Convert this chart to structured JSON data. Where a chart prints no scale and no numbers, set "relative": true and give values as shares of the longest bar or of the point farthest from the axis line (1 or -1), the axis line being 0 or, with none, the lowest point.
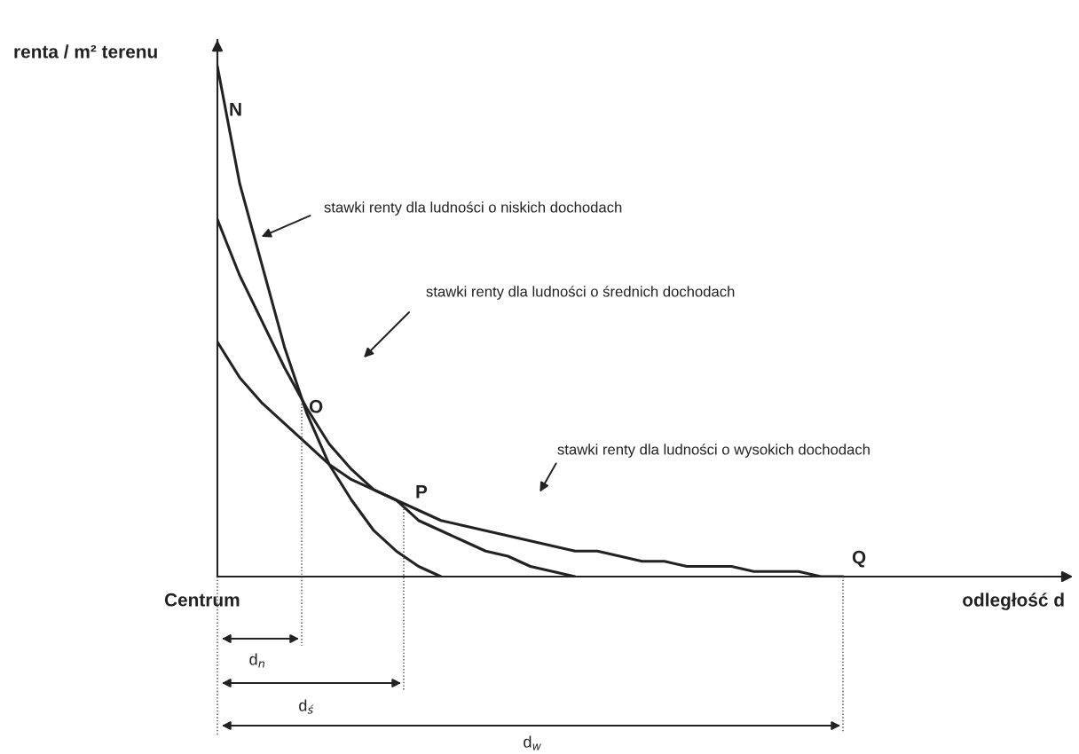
{
  "chart_data": {
    "type": "line",
    "relative": true,
    "ylabel": "renta / m² terenu",
    "categories": [
      null,
      null,
      null,
      null,
      null,
      null,
      null,
      null,
      null,
      null,
      null,
      null,
      null,
      null,
      null,
      null,
      null,
      null,
      null,
      null,
      null,
      null,
      null,
      null,
      null,
      null,
      null,
      null,
      null
    ],
    "series": [
      {
        "color": "#222222",
        "values": [
          1.0,
          0.77,
          0.61,
          0.45,
          0.32,
          0.22,
          0.15,
          0.09,
          0.05,
          0.02,
          0.0,
          null,
          null,
          null,
          null,
          null,
          null,
          null,
          null,
          null,
          null,
          null,
          null,
          null,
          null,
          null,
          null,
          null,
          null
        ]
      },
      {
        "color": "#222222",
        "values": [
          0.7,
          0.59,
          0.5,
          0.41,
          0.33,
          0.26,
          0.21,
          0.17,
          0.15,
          0.11,
          0.09,
          0.07,
          0.05,
          0.04,
          0.02,
          0.01,
          0.0,
          null,
          null,
          null,
          null,
          null,
          null,
          null,
          null,
          null,
          null,
          null,
          null
        ]
      },
      {
        "color": "#222222",
        "values": [
          0.46,
          0.39,
          0.34,
          0.3,
          0.26,
          0.22,
          0.19,
          0.17,
          0.15,
          0.13,
          0.11,
          0.1,
          0.09,
          0.08,
          0.07,
          0.06,
          0.05,
          0.05,
          0.04,
          0.03,
          0.03,
          0.02,
          0.02,
          0.02,
          0.01,
          0.01,
          0.01,
          0.0,
          0.0
        ]
      }
    ],
    "annotations": [
      "N",
      "O",
      "P",
      "Q",
      "Centrum",
      "d$_{n}$",
      "d$_{ś}$",
      "d$_{w}$",
      "odległość d",
      "stawki renty dla ludności o niskich dochodach",
      "stawki renty dla ludności o średnich dochodach",
      "stawki renty dla ludności o wysokich dochodach"
    ],
    "marker": "none",
    "line_style": "solid",
    "tick_labels": false
  }
}
